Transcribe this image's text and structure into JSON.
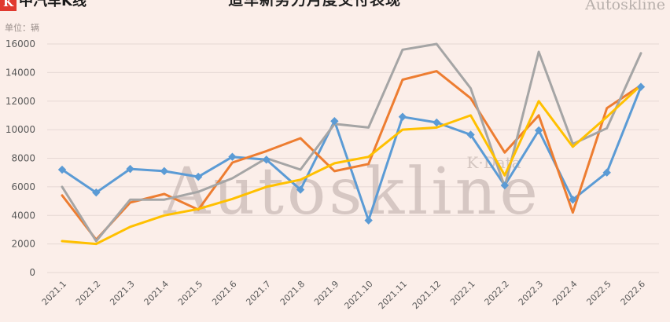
{
  "header": {
    "brand_logo": "K",
    "brand_name": "中汽车K线",
    "title": "造车新势力月度交付表现",
    "corner_watermark": "Autoskline"
  },
  "watermark": {
    "main": "Autoskline",
    "sub": "K·Data"
  },
  "colors": {
    "background": "#fbeee9",
    "grid": "#e6d8d4",
    "axis_text": "#595959",
    "watermark": "#c9bab5"
  },
  "chart_data": {
    "type": "line",
    "unit_label": "单位：辆",
    "categories": [
      "2021.1",
      "2021.2",
      "2021.3",
      "2021.4",
      "2021.5",
      "2021.6",
      "2021.7",
      "2021.8",
      "2021.9",
      "2021.10",
      "2021.11",
      "2021.12",
      "2022.1",
      "2022.2",
      "2022.3",
      "2022.4",
      "2022.5",
      "2022.6"
    ],
    "ylim": [
      0,
      16000
    ],
    "yticks": [
      0,
      2000,
      4000,
      6000,
      8000,
      10000,
      12000,
      14000,
      16000
    ],
    "grid": true,
    "series": [
      {
        "color": "#5b9bd5",
        "marker": "diamond",
        "values": [
          7200,
          5600,
          7250,
          7100,
          6700,
          8100,
          7900,
          5800,
          10600,
          3650,
          10900,
          10500,
          9650,
          6100,
          9950,
          5100,
          7000,
          13000
        ]
      },
      {
        "color": "#ed7d31",
        "marker": "none",
        "values": [
          5400,
          2300,
          4900,
          5500,
          4400,
          7700,
          8500,
          9400,
          7100,
          7600,
          13500,
          14100,
          12200,
          8400,
          11000,
          4200,
          11500,
          13100
        ]
      },
      {
        "color": "#a5a5a5",
        "marker": "none",
        "values": [
          6000,
          2200,
          5100,
          5100,
          5650,
          6600,
          8000,
          7200,
          10400,
          10150,
          15600,
          16000,
          12900,
          6000,
          15450,
          9000,
          10100,
          15350
        ]
      },
      {
        "color": "#ffc000",
        "marker": "none",
        "values": [
          2200,
          2000,
          3200,
          4000,
          4450,
          5150,
          6000,
          6500,
          7650,
          8100,
          10000,
          10150,
          11000,
          6800,
          12000,
          8800,
          10900,
          13100
        ]
      }
    ]
  }
}
